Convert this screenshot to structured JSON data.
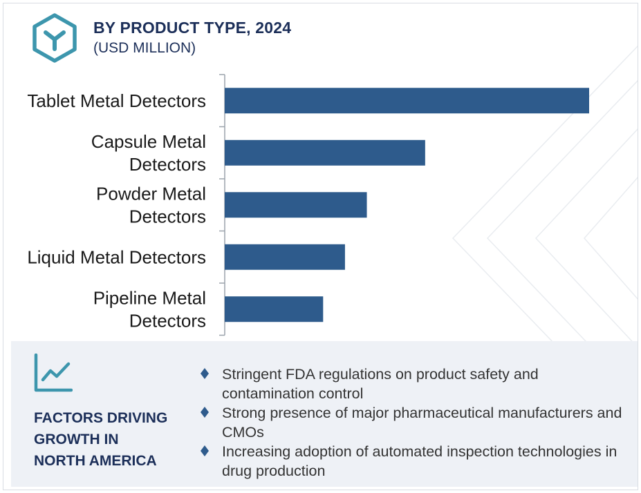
{
  "header": {
    "title": "BY PRODUCT TYPE, 2024",
    "subtitle": "(USD MILLION)",
    "logo_icon": "cube-y-logo-icon"
  },
  "colors": {
    "bar": "#2e5b8c",
    "title": "#1c2f59",
    "accent": "#3d96ad",
    "panel_bg": "#eef1f6",
    "axis": "#9aa2ab"
  },
  "chart_data": {
    "type": "bar",
    "orientation": "horizontal",
    "title": "BY PRODUCT TYPE, 2024",
    "subtitle": "(USD MILLION)",
    "xlabel": "",
    "ylabel": "",
    "categories": [
      "Tablet Metal Detectors",
      "Capsule Metal Detectors",
      "Powder Metal Detectors",
      "Liquid Metal Detectors",
      "Pipeline Metal Detectors"
    ],
    "category_lines": [
      [
        "Tablet Metal Detectors"
      ],
      [
        "Capsule Metal",
        "Detectors"
      ],
      [
        "Powder Metal",
        "Detectors"
      ],
      [
        "Liquid Metal Detectors"
      ],
      [
        "Pipeline Metal",
        "Detectors"
      ]
    ],
    "values": [
      100,
      55,
      39,
      33,
      27
    ],
    "xlim": [
      0,
      100
    ],
    "grid": false,
    "legend": "none"
  },
  "factors": {
    "icon": "trend-line-icon",
    "title_lines": [
      "FACTORS DRIVING",
      "GROWTH IN",
      "NORTH AMERICA"
    ],
    "bullet_icon": "diamond-bullet-icon",
    "items": [
      "Stringent FDA regulations on product safety and contamination control",
      "Strong presence of major pharmaceutical manufacturers and CMOs",
      "Increasing adoption of automated inspection technologies in drug production"
    ]
  }
}
